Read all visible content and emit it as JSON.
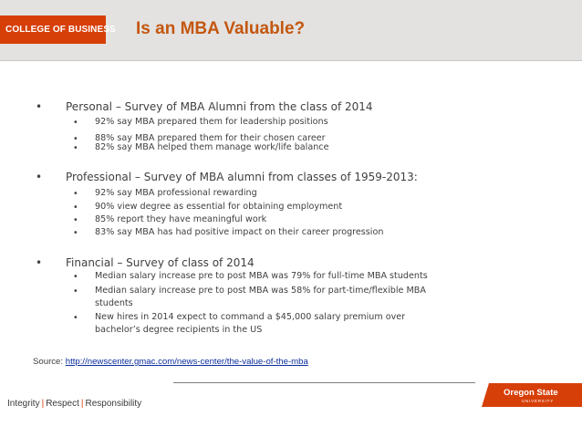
{
  "header": {
    "college": "COLLEGE OF BUSINESS",
    "title": "Is an MBA Valuable?"
  },
  "sections": [
    {
      "bullet": "•",
      "heading": "Personal – Survey of MBA Alumni from the class of 2014",
      "items": [
        "92% say MBA prepared them for leadership positions",
        "88% say MBA prepared them for their chosen career",
        "82% say MBA helped them manage work/life balance"
      ]
    },
    {
      "bullet": "•",
      "heading": "Professional – Survey of MBA alumni from classes of 1959-2013:",
      "items": [
        "92% say MBA professional rewarding",
        "90% view degree as essential for obtaining employment",
        "85% report they have meaningful work",
        "83% say MBA has had positive impact on their career progression"
      ]
    },
    {
      "bullet": "•",
      "heading": "Financial – Survey of class of 2014",
      "items": [
        "Median salary increase pre to post MBA was 79% for full-time MBA students",
        "Median salary increase pre to post MBA was 58% for part-time/flexible MBA",
        "students",
        "New hires in 2014 expect to command a $45,000 salary premium over",
        "bachelor’s degree recipients in the US"
      ]
    }
  ],
  "source": {
    "label": "Source:",
    "url": "http://newscenter.gmac.com/news-center/the-value-of-the-mba"
  },
  "footer": {
    "tag1": "Integrity",
    "tag2": "Respect",
    "tag3": "Responsibility",
    "separator": "|",
    "logo_line1": "Oregon State",
    "logo_line2": "UNIVERSITY"
  },
  "colors": {
    "brand_orange": "#d73f09",
    "title_orange": "#c4570f",
    "header_gray": "#e3e2e1",
    "link_blue": "#0b2d9c"
  }
}
